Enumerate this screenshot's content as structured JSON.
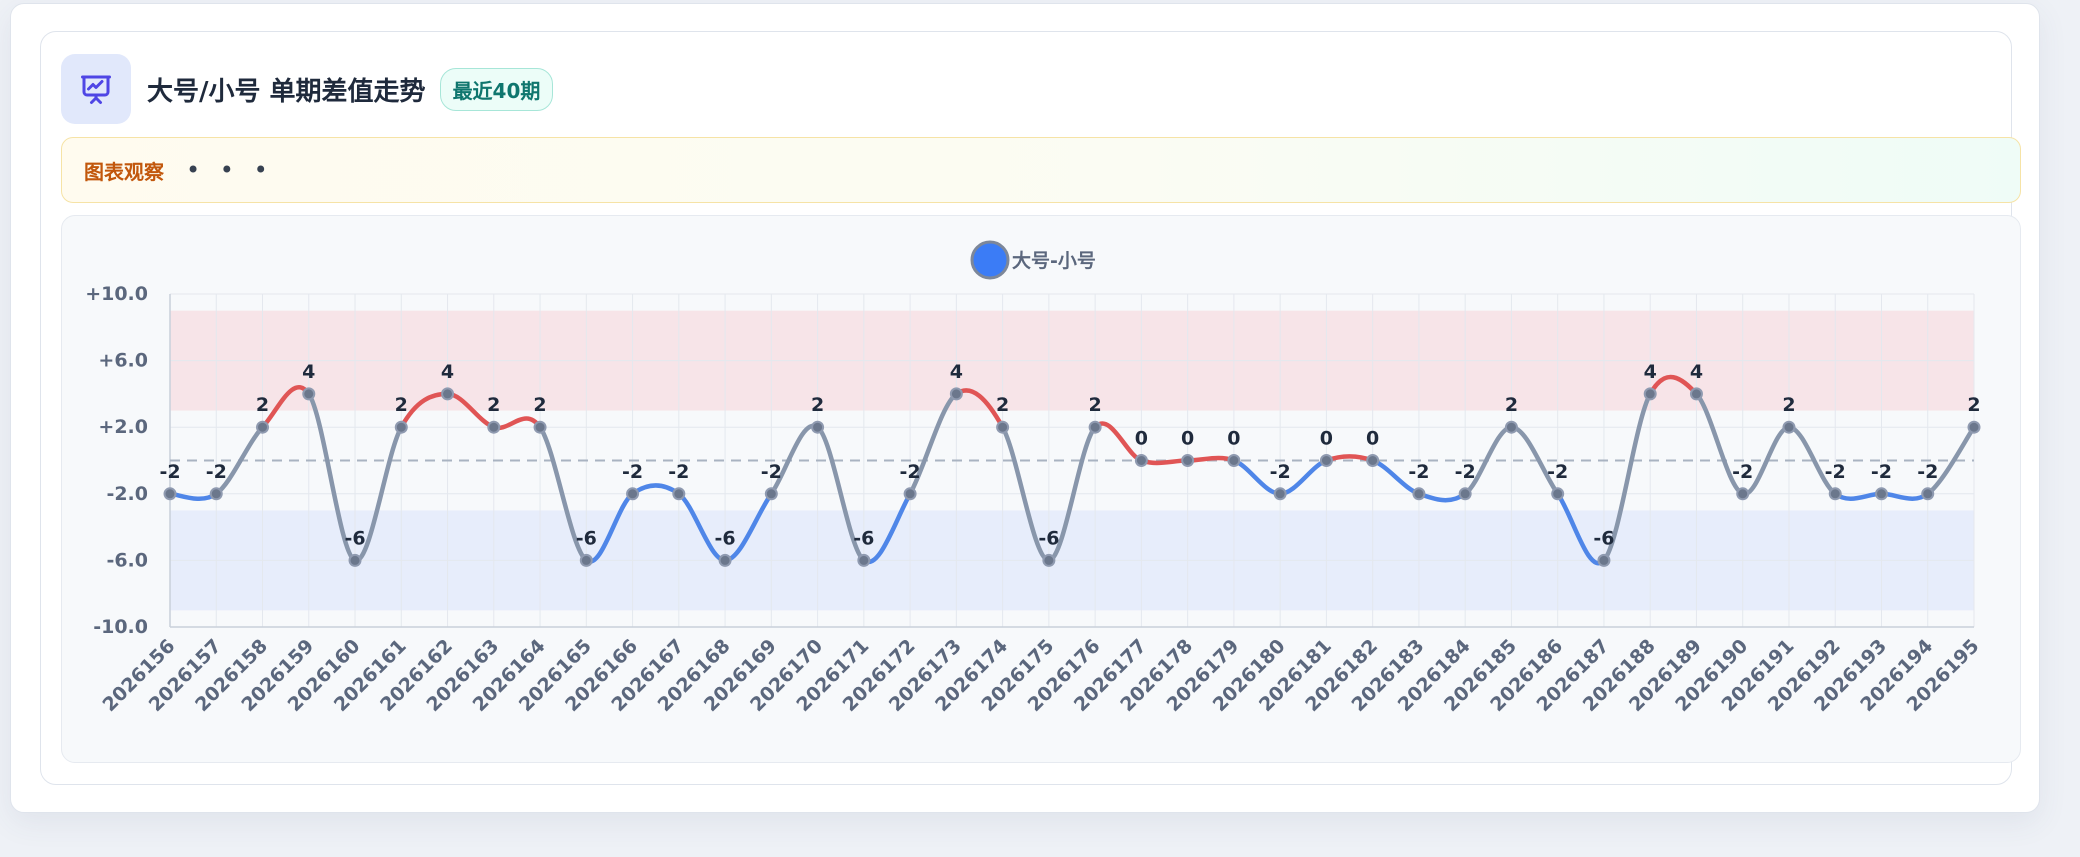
{
  "header": {
    "title": "大号/小号 单期差值走势",
    "badge": "最近40期",
    "icon": "presentation-chart-icon"
  },
  "observation": {
    "label": "图表观察",
    "more": "• • •"
  },
  "colors": {
    "positive": "#e05555",
    "negative": "#4f86e8",
    "neutral": "#8896ab",
    "upper_band": "#f7e4e8",
    "lower_band": "#e7edfb",
    "legend_dot": "#3b7cf6"
  },
  "chart_data": {
    "type": "line",
    "title": "",
    "xlabel": "",
    "ylabel": "",
    "ylim": [
      -10,
      10
    ],
    "yticks": [
      "+10.0",
      "+6.0",
      "+2.0",
      "-2.0",
      "-6.0",
      "-10.0"
    ],
    "ytick_values": [
      10,
      6,
      2,
      -2,
      -6,
      -10
    ],
    "reference_line": 0,
    "bands": [
      {
        "from": 3,
        "to": 9,
        "color": "#f7e4e8"
      },
      {
        "from": -9,
        "to": -3,
        "color": "#e7edfb"
      }
    ],
    "legend": {
      "position": "top-center"
    },
    "x": [
      "2026156",
      "2026157",
      "2026158",
      "2026159",
      "2026160",
      "2026161",
      "2026162",
      "2026163",
      "2026164",
      "2026165",
      "2026166",
      "2026167",
      "2026168",
      "2026169",
      "2026170",
      "2026171",
      "2026172",
      "2026173",
      "2026174",
      "2026175",
      "2026176",
      "2026177",
      "2026178",
      "2026179",
      "2026180",
      "2026181",
      "2026182",
      "2026183",
      "2026184",
      "2026185",
      "2026186",
      "2026187",
      "2026188",
      "2026189",
      "2026190",
      "2026191",
      "2026192",
      "2026193",
      "2026194",
      "2026195"
    ],
    "series": [
      {
        "name": "大号-小号",
        "values": [
          -2,
          -2,
          2,
          4,
          -6,
          2,
          4,
          2,
          2,
          -6,
          -2,
          -2,
          -6,
          -2,
          2,
          -6,
          -2,
          4,
          2,
          -6,
          2,
          0,
          0,
          0,
          -2,
          0,
          0,
          -2,
          -2,
          2,
          -2,
          -6,
          4,
          4,
          -2,
          2,
          -2,
          -2,
          -2,
          2
        ]
      }
    ]
  }
}
